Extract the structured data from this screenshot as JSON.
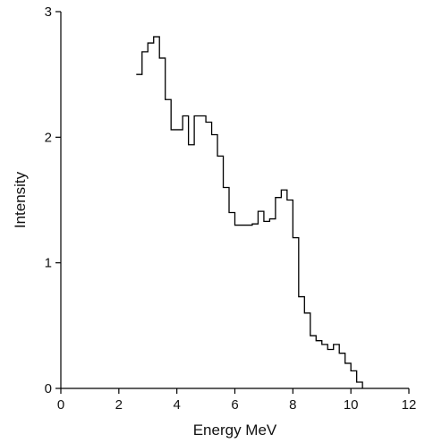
{
  "chart_data": {
    "type": "step",
    "title": "",
    "xlabel": "Energy MeV",
    "ylabel": "Intensity",
    "xlim": [
      0,
      12
    ],
    "ylim": [
      0,
      3
    ],
    "xticks": [
      0,
      2,
      4,
      6,
      8,
      10,
      12
    ],
    "yticks": [
      0,
      1,
      2,
      3
    ],
    "grid": false,
    "legend": "none",
    "bin_width": 0.2,
    "bins": [
      {
        "x": 2.6,
        "y": 2.5
      },
      {
        "x": 2.8,
        "y": 2.68
      },
      {
        "x": 3.0,
        "y": 2.75
      },
      {
        "x": 3.2,
        "y": 2.8
      },
      {
        "x": 3.4,
        "y": 2.63
      },
      {
        "x": 3.6,
        "y": 2.3
      },
      {
        "x": 3.8,
        "y": 2.06
      },
      {
        "x": 4.0,
        "y": 2.06
      },
      {
        "x": 4.2,
        "y": 2.17
      },
      {
        "x": 4.4,
        "y": 1.94
      },
      {
        "x": 4.6,
        "y": 2.17
      },
      {
        "x": 4.8,
        "y": 2.17
      },
      {
        "x": 5.0,
        "y": 2.12
      },
      {
        "x": 5.2,
        "y": 2.02
      },
      {
        "x": 5.4,
        "y": 1.85
      },
      {
        "x": 5.6,
        "y": 1.6
      },
      {
        "x": 5.8,
        "y": 1.4
      },
      {
        "x": 6.0,
        "y": 1.3
      },
      {
        "x": 6.2,
        "y": 1.3
      },
      {
        "x": 6.4,
        "y": 1.3
      },
      {
        "x": 6.6,
        "y": 1.31
      },
      {
        "x": 6.8,
        "y": 1.41
      },
      {
        "x": 7.0,
        "y": 1.33
      },
      {
        "x": 7.2,
        "y": 1.35
      },
      {
        "x": 7.4,
        "y": 1.52
      },
      {
        "x": 7.6,
        "y": 1.58
      },
      {
        "x": 7.8,
        "y": 1.5
      },
      {
        "x": 8.0,
        "y": 1.2
      },
      {
        "x": 8.2,
        "y": 0.73
      },
      {
        "x": 8.4,
        "y": 0.6
      },
      {
        "x": 8.6,
        "y": 0.42
      },
      {
        "x": 8.8,
        "y": 0.38
      },
      {
        "x": 9.0,
        "y": 0.35
      },
      {
        "x": 9.2,
        "y": 0.31
      },
      {
        "x": 9.4,
        "y": 0.35
      },
      {
        "x": 9.6,
        "y": 0.28
      },
      {
        "x": 9.8,
        "y": 0.2
      },
      {
        "x": 10.0,
        "y": 0.14
      },
      {
        "x": 10.2,
        "y": 0.05
      }
    ],
    "series_color": "#000000"
  }
}
